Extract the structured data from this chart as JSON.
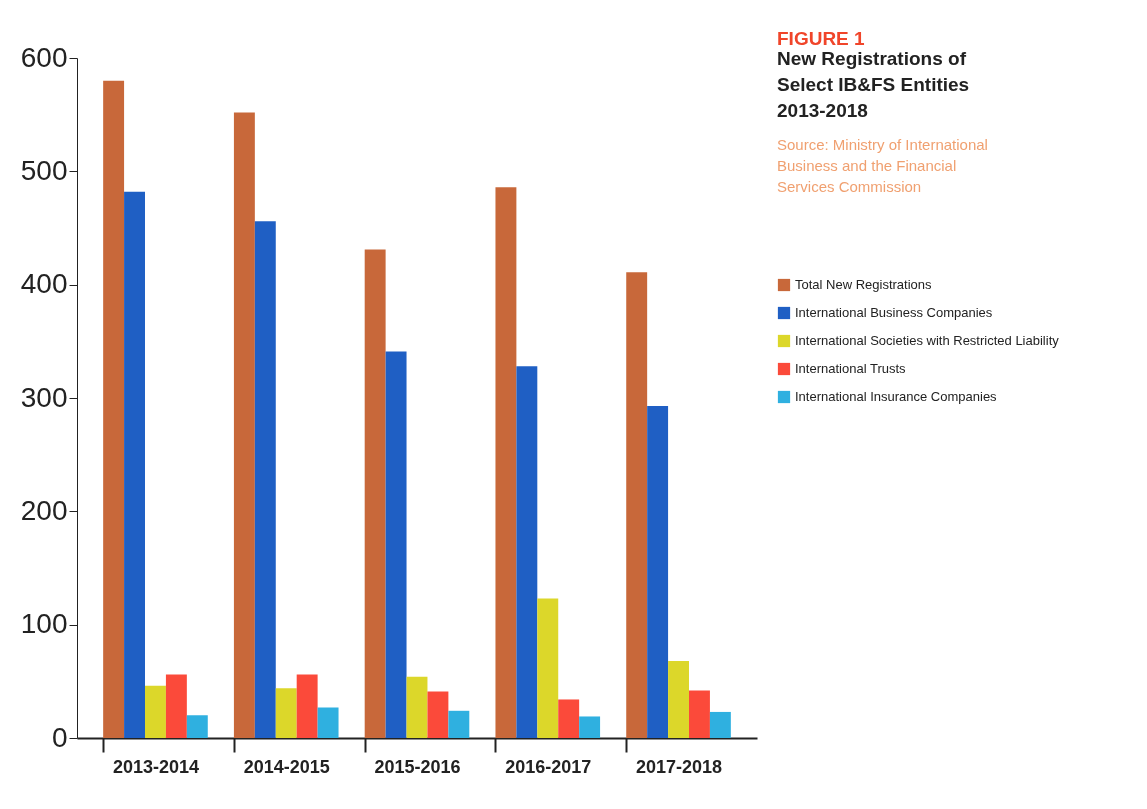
{
  "chart_data": {
    "type": "bar",
    "title": "FIGURE 1",
    "subtitle": "New Registrations of Select IB&FS Entities 2013-2018",
    "annotations": [
      "Source: Ministry of International Business and the Financial Services Commission"
    ],
    "categories": [
      "2013-2014",
      "2014-2015",
      "2015-2016",
      "2016-2017",
      "2017-2018"
    ],
    "series": [
      {
        "name": "Total New Registrations",
        "color": "#c8683a",
        "values": [
          580,
          552,
          431,
          486,
          411
        ]
      },
      {
        "name": "International Business Companies",
        "color": "#1f5fc4",
        "values": [
          482,
          456,
          341,
          328,
          293
        ]
      },
      {
        "name": "International Societies with Restricted Liability",
        "color": "#dcd72a",
        "values": [
          46,
          44,
          54,
          123,
          68
        ]
      },
      {
        "name": "International Trusts",
        "color": "#fb4a3a",
        "values": [
          56,
          56,
          41,
          34,
          42
        ]
      },
      {
        "name": "International Insurance Companies",
        "color": "#2fb0e0",
        "values": [
          20,
          27,
          24,
          19,
          23
        ]
      }
    ],
    "ylim": [
      0,
      600
    ],
    "yticks": [
      0,
      100,
      200,
      300,
      400,
      500,
      600
    ],
    "grid": false,
    "legend": "right"
  }
}
